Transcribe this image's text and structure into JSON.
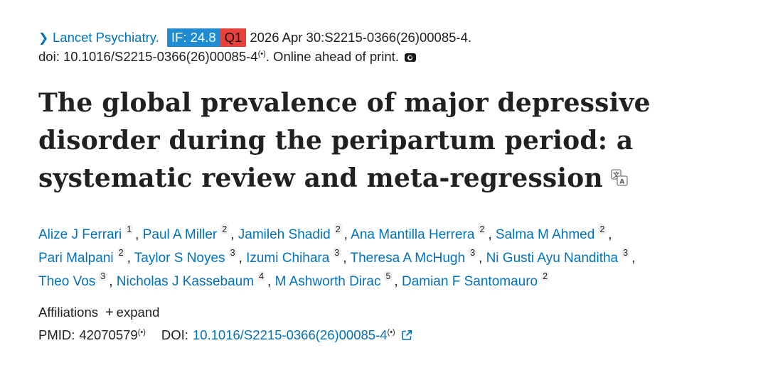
{
  "citation": {
    "journal": "Lancet Psychiatry.",
    "impact_factor_badge": "IF: 24.8",
    "quartile_badge": "Q1",
    "date_and_id": "2026 Apr 30:S2215-0366(26)00085-4.",
    "doi_prefix": "doi: ",
    "doi_text": "10.1016/S2215-0366(26)00085-4",
    "status": ". Online ahead of print.",
    "colors": {
      "if_badge": "#1f8bd3",
      "q_badge": "#e8403b",
      "link": "#0071bc"
    }
  },
  "article": {
    "title": "The global prevalence of major depressive disorder during the peripartum period: a systematic review and meta-regression"
  },
  "authors": [
    {
      "name": "Alize J Ferrari",
      "aff": "1"
    },
    {
      "name": "Paul A Miller",
      "aff": "2"
    },
    {
      "name": "Jamileh Shadid",
      "aff": "2"
    },
    {
      "name": "Ana Mantilla Herrera",
      "aff": "2"
    },
    {
      "name": "Salma M Ahmed",
      "aff": "2"
    },
    {
      "name": "Pari Malpani",
      "aff": "2"
    },
    {
      "name": "Taylor S Noyes",
      "aff": "3"
    },
    {
      "name": "Izumi Chihara",
      "aff": "3"
    },
    {
      "name": "Theresa A McHugh",
      "aff": "3"
    },
    {
      "name": "Ni Gusti Ayu Nanditha",
      "aff": "3"
    },
    {
      "name": "Theo Vos",
      "aff": "3"
    },
    {
      "name": "Nicholas J Kassebaum",
      "aff": "4"
    },
    {
      "name": "M Ashworth Dirac",
      "aff": "5"
    },
    {
      "name": "Damian F Santomauro",
      "aff": "2"
    }
  ],
  "affiliations": {
    "label": "Affiliations",
    "expand_label": "expand"
  },
  "identifiers": {
    "pmid_label": "PMID:",
    "pmid": "42070579",
    "doi_label": "DOI:",
    "doi": "10.1016/S2215-0366(26)00085-4"
  },
  "icons": {
    "chevron": "chevron-right-icon",
    "camera": "camera-icon",
    "translate": "translate-icon",
    "external": "external-link-icon",
    "doi_ring": "doi-signal-icon"
  }
}
